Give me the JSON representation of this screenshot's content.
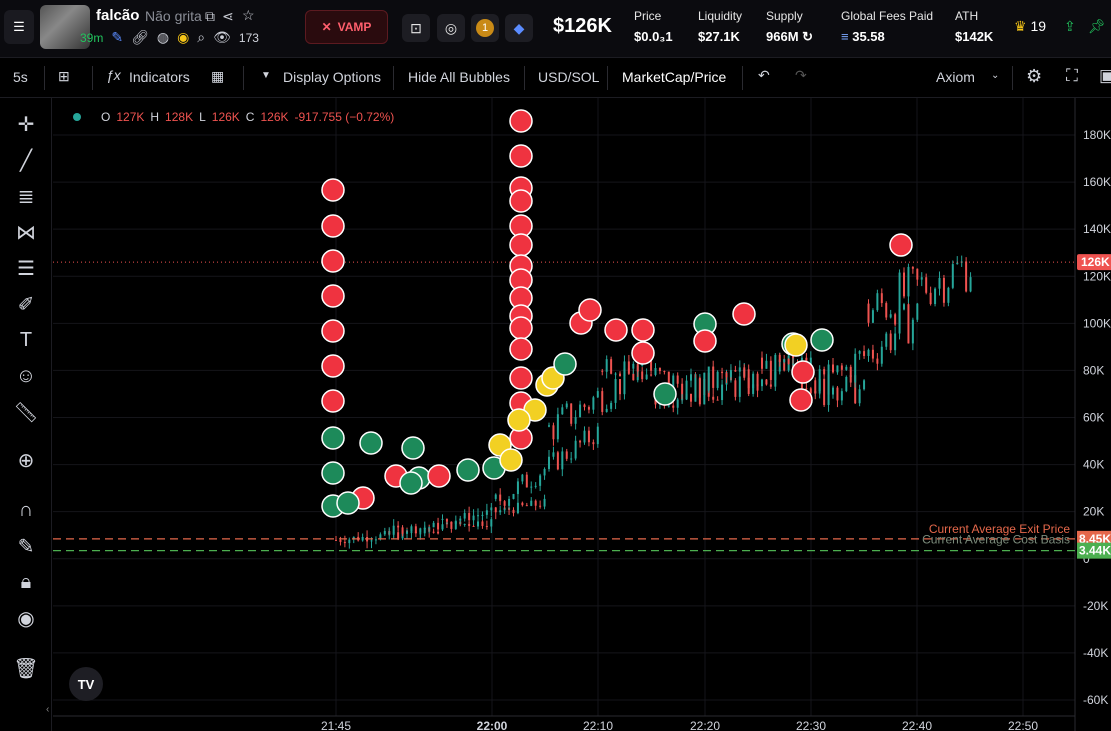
{
  "header": {
    "token_name": "falcão",
    "token_subtitle": "Não grita",
    "age": "39m",
    "watchers": "173",
    "vamp_label": "VAMP",
    "market_cap": "$126K",
    "stats": [
      {
        "label": "Price",
        "value": "$0.0₃1"
      },
      {
        "label": "Liquidity",
        "value": "$27.1K"
      },
      {
        "label": "Supply",
        "value": "966M"
      },
      {
        "label": "Global Fees Paid",
        "value": "35.58"
      },
      {
        "label": "ATH",
        "value": "$142K"
      }
    ],
    "holders_count": "19",
    "badge_number": "1"
  },
  "toolbar": {
    "interval": "5s",
    "indicators": "Indicators",
    "display_options": "Display Options",
    "hide_bubbles": "Hide All Bubbles",
    "pair": "USD/SOL",
    "mode": "MarketCap/Price",
    "provider": "Axiom"
  },
  "ohlc": {
    "o_label": "O",
    "o": "127K",
    "h_label": "H",
    "h": "128K",
    "l_label": "L",
    "l": "126K",
    "c_label": "C",
    "c": "126K",
    "change": "-917.755 (−0.72%)"
  },
  "chart": {
    "yticks": [
      "180K",
      "160K",
      "140K",
      "120K",
      "100K",
      "80K",
      "60K",
      "40K",
      "20K",
      "0",
      "-20K",
      "-40K",
      "-60K"
    ],
    "xticks": [
      "21:45",
      "22:00",
      "22:10",
      "22:20",
      "22:30",
      "22:40",
      "22:50"
    ],
    "current_label": "126K",
    "exit_price_label": "Current Average Exit Price",
    "exit_price_value": "8.45K",
    "cost_basis_label": "Current Average Cost Basis",
    "cost_basis_value": "3.44K",
    "colors": {
      "up": "#26a69a",
      "down": "#ef5350",
      "exit": "#e5684b",
      "cost": "#4caf50"
    }
  },
  "chart_data": {
    "type": "candlestick",
    "x": [
      "21:45",
      "21:50",
      "21:55",
      "22:00",
      "22:05",
      "22:10",
      "22:15",
      "22:20",
      "22:25",
      "22:30",
      "22:35",
      "22:40"
    ],
    "close": [
      8000,
      12000,
      16000,
      24000,
      55000,
      85000,
      70000,
      75000,
      82000,
      70000,
      105000,
      126000
    ],
    "ylim": [
      -60000,
      180000
    ],
    "current": 126000,
    "avg_exit_price": 8450,
    "avg_cost_basis": 3440
  }
}
